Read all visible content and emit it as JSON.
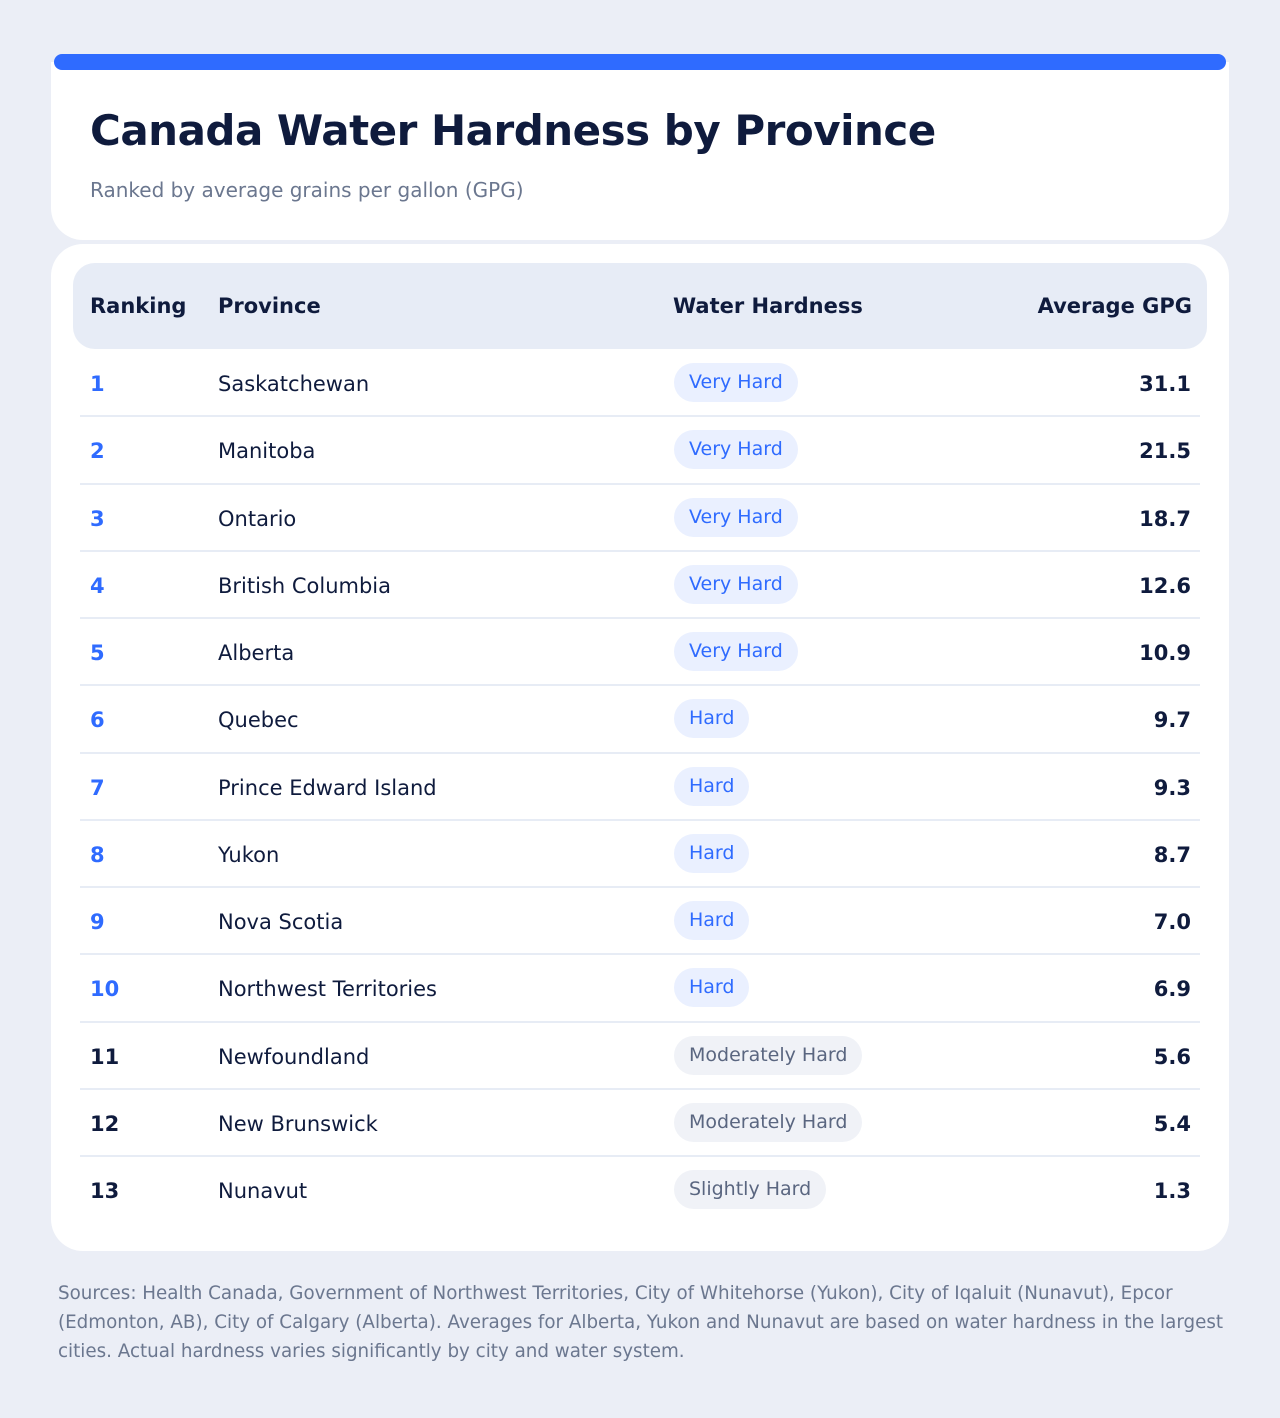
{
  "colors": {
    "accent": "#2f6bff",
    "background": "#ebeef6",
    "card": "#ffffff",
    "header_bg": "#e7ecf6",
    "text_dark": "#0f1b3d",
    "text_muted": "#6b778f",
    "badge_blue_bg": "#eaf0ff",
    "badge_gray_bg": "#f0f2f7"
  },
  "header": {
    "title": "Canada Water Hardness by Province",
    "subtitle": "Ranked by average grains per gallon (GPG)"
  },
  "table": {
    "columns": [
      "Ranking",
      "Province",
      "Water Hardness",
      "Average GPG"
    ],
    "rows": [
      {
        "rank": "1",
        "province": "Saskatchewan",
        "hardness": "Very Hard",
        "gpg": "31.1"
      },
      {
        "rank": "2",
        "province": "Manitoba",
        "hardness": "Very Hard",
        "gpg": "21.5"
      },
      {
        "rank": "3",
        "province": "Ontario",
        "hardness": "Very Hard",
        "gpg": "18.7"
      },
      {
        "rank": "4",
        "province": "British Columbia",
        "hardness": "Very Hard",
        "gpg": "12.6"
      },
      {
        "rank": "5",
        "province": "Alberta",
        "hardness": "Very Hard",
        "gpg": "10.9"
      },
      {
        "rank": "6",
        "province": "Quebec",
        "hardness": "Hard",
        "gpg": "9.7"
      },
      {
        "rank": "7",
        "province": "Prince Edward Island",
        "hardness": "Hard",
        "gpg": "9.3"
      },
      {
        "rank": "8",
        "province": "Yukon",
        "hardness": "Hard",
        "gpg": "8.7"
      },
      {
        "rank": "9",
        "province": "Nova Scotia",
        "hardness": "Hard",
        "gpg": "7.0"
      },
      {
        "rank": "10",
        "province": "Northwest Territories",
        "hardness": "Hard",
        "gpg": "6.9"
      },
      {
        "rank": "11",
        "province": "Newfoundland",
        "hardness": "Moderately Hard",
        "gpg": "5.6"
      },
      {
        "rank": "12",
        "province": "New Brunswick",
        "hardness": "Moderately Hard",
        "gpg": "5.4"
      },
      {
        "rank": "13",
        "province": "Nunavut",
        "hardness": "Slightly Hard",
        "gpg": "1.3"
      }
    ]
  },
  "footer": {
    "sources": "Sources: Health Canada, Government of Northwest Territories, City of Whitehorse (Yukon), City of Iqaluit (Nunavut), Epcor (Edmonton, AB), City of Calgary (Alberta). Averages for Alberta, Yukon and Nunavut are based on water hardness in the largest cities. Actual hardness varies significantly by city and water system."
  }
}
